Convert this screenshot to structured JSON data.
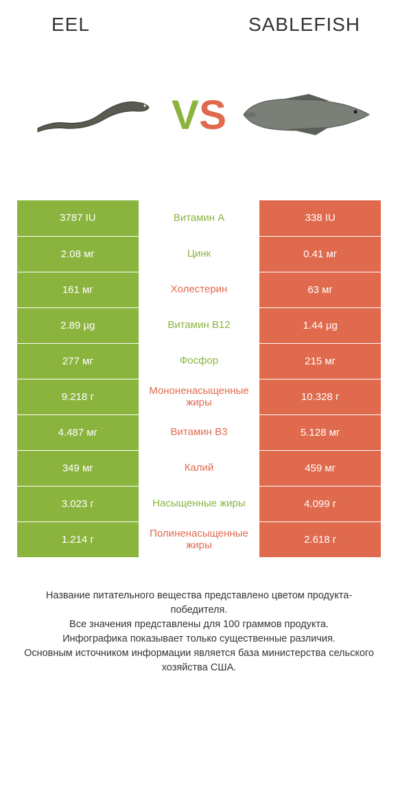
{
  "colors": {
    "green": "#8bb43f",
    "orange": "#e06a4e",
    "text": "#333333",
    "bg": "#ffffff"
  },
  "header": {
    "left": "Eel",
    "right": "Sablefish",
    "vs_v": "V",
    "vs_s": "S"
  },
  "rows": [
    {
      "left": "3787 IU",
      "label": "Витамин A",
      "right": "338 IU",
      "winner": "left"
    },
    {
      "left": "2.08 мг",
      "label": "Цинк",
      "right": "0.41 мг",
      "winner": "left"
    },
    {
      "left": "161 мг",
      "label": "Холестерин",
      "right": "63 мг",
      "winner": "right"
    },
    {
      "left": "2.89 µg",
      "label": "Витамин B12",
      "right": "1.44 µg",
      "winner": "left"
    },
    {
      "left": "277 мг",
      "label": "Фосфор",
      "right": "215 мг",
      "winner": "left"
    },
    {
      "left": "9.218 г",
      "label": "Мононенасыщенные жиры",
      "right": "10.328 г",
      "winner": "right"
    },
    {
      "left": "4.487 мг",
      "label": "Витамин B3",
      "right": "5.128 мг",
      "winner": "right"
    },
    {
      "left": "349 мг",
      "label": "Калий",
      "right": "459 мг",
      "winner": "right"
    },
    {
      "left": "3.023 г",
      "label": "Насыщенные жиры",
      "right": "4.099 г",
      "winner": "left"
    },
    {
      "left": "1.214 г",
      "label": "Полиненасыщенные жиры",
      "right": "2.618 г",
      "winner": "right"
    }
  ],
  "footnote": {
    "l1": "Название питательного вещества представлено цветом продукта-победителя.",
    "l2": "Все значения представлены для 100 граммов продукта.",
    "l3": "Инфографика показывает только существенные различия.",
    "l4": "Основным источником информации является база министерства сельского хозяйства США."
  }
}
